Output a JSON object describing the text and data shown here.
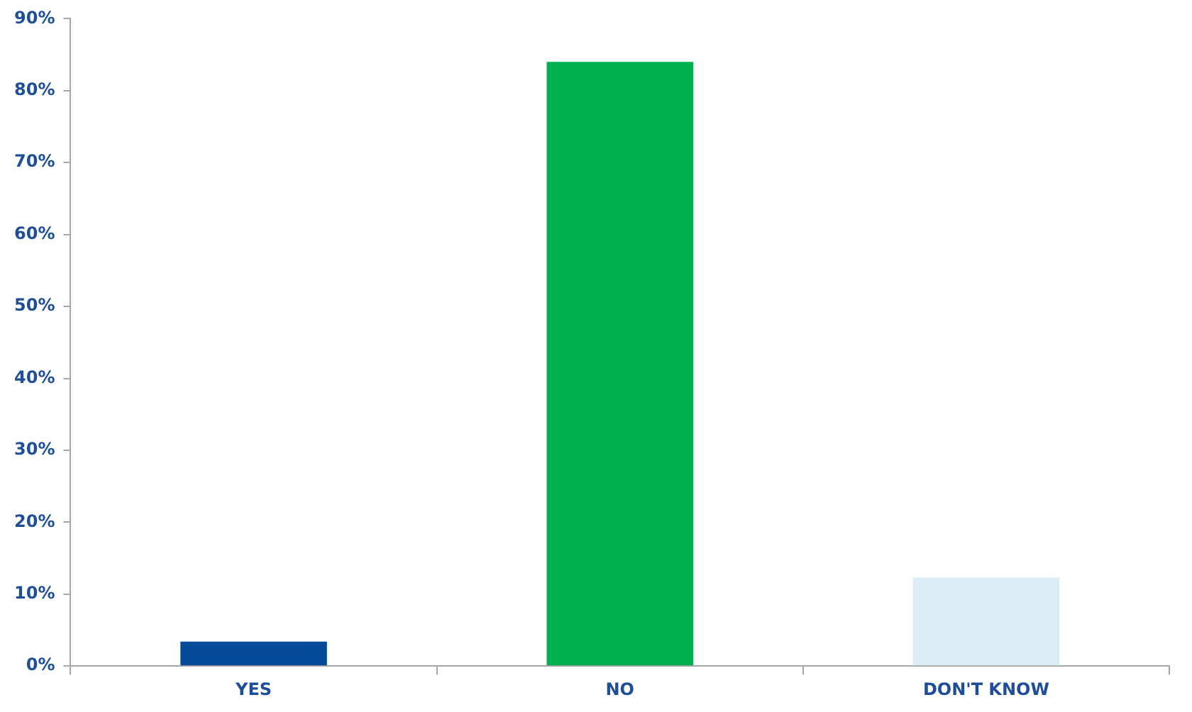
{
  "chart_data": {
    "type": "bar",
    "categories": [
      "YES",
      "NO",
      "DON'T KNOW"
    ],
    "values": [
      3.4,
      84,
      12.3
    ],
    "colors": [
      "#044a98",
      "#00b050",
      "#daecf4"
    ],
    "ylim": [
      0,
      90
    ],
    "yticks": [
      {
        "value": 0,
        "label": "0%"
      },
      {
        "value": 10,
        "label": "10%"
      },
      {
        "value": 20,
        "label": "20%"
      },
      {
        "value": 30,
        "label": "30%"
      },
      {
        "value": 40,
        "label": "40%"
      },
      {
        "value": 50,
        "label": "50%"
      },
      {
        "value": 60,
        "label": "60%"
      },
      {
        "value": 70,
        "label": "70%"
      },
      {
        "value": 80,
        "label": "80%"
      },
      {
        "value": 90,
        "label": "90%"
      }
    ],
    "grid": false,
    "legend": false
  }
}
